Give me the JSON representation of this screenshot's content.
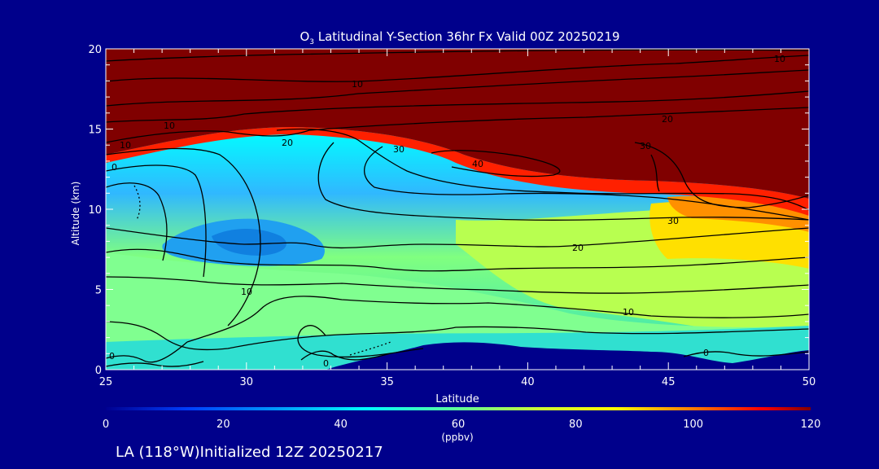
{
  "chart_data": {
    "type": "heatmap",
    "title_main": "O",
    "title_sub": "3",
    "title_rest": " Latitudinal Y-Section 36hr  Fx Valid 00Z 20250219",
    "xlabel": "Latitude",
    "ylabel": "Altitude (km)",
    "xlim": [
      25,
      50
    ],
    "ylim": [
      0,
      20
    ],
    "x_ticks": [
      "25",
      "30",
      "35",
      "40",
      "45",
      "50"
    ],
    "y_ticks": [
      "0",
      "5",
      "10",
      "15",
      "20"
    ],
    "colorbar": {
      "range": [
        0,
        120
      ],
      "ticks": [
        "0",
        "20",
        "40",
        "60",
        "80",
        "100",
        "120"
      ],
      "unit": "(ppbv)"
    },
    "contour_labels": [
      "10",
      "10",
      "10",
      "10",
      "0",
      "20",
      "30",
      "40",
      "20",
      "30",
      "30",
      "20",
      "10",
      "10",
      "0",
      "0",
      "0"
    ],
    "footer": "LA (118°W)Initialized 12Z 20250217",
    "colors": {
      "background": "#00008b",
      "high": "#800000",
      "terrain": "#00008b",
      "contour": "#000000"
    }
  }
}
